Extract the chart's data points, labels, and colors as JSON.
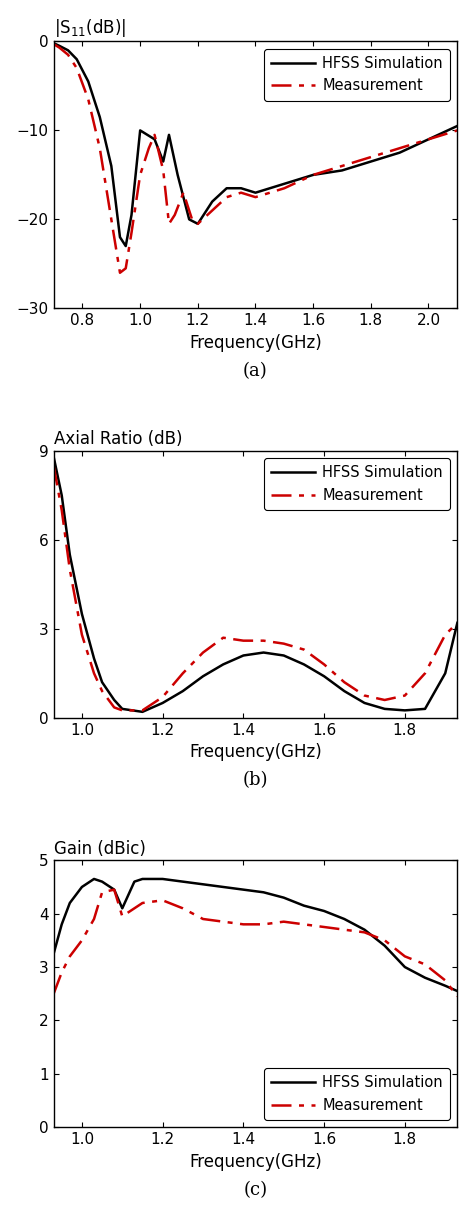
{
  "fig_width": 4.74,
  "fig_height": 12.17,
  "background_color": "#ffffff",
  "plot_a": {
    "ylabel": "|S$_{11}$(dB)|",
    "xlabel": "Frequency(GHz)",
    "label": "(a)",
    "xlim": [
      0.7,
      2.1
    ],
    "ylim": [
      -30,
      0
    ],
    "yticks": [
      0,
      -10,
      -20,
      -30
    ],
    "xticks": [
      0.8,
      1.0,
      1.2,
      1.4,
      1.6,
      1.8,
      2.0
    ],
    "sim_x": [
      0.7,
      0.72,
      0.75,
      0.78,
      0.82,
      0.86,
      0.9,
      0.93,
      0.95,
      0.97,
      1.0,
      1.05,
      1.08,
      1.1,
      1.13,
      1.17,
      1.2,
      1.25,
      1.3,
      1.35,
      1.4,
      1.5,
      1.6,
      1.7,
      1.8,
      1.9,
      2.0,
      2.1
    ],
    "sim_y": [
      -0.2,
      -0.5,
      -1.0,
      -2.0,
      -4.5,
      -8.5,
      -14.0,
      -22.0,
      -23.0,
      -19.5,
      -10.0,
      -11.0,
      -13.5,
      -10.5,
      -15.0,
      -20.0,
      -20.5,
      -18.0,
      -16.5,
      -16.5,
      -17.0,
      -16.0,
      -15.0,
      -14.5,
      -13.5,
      -12.5,
      -11.0,
      -9.5
    ],
    "meas_x": [
      0.7,
      0.72,
      0.75,
      0.78,
      0.82,
      0.86,
      0.9,
      0.93,
      0.95,
      0.97,
      1.0,
      1.03,
      1.05,
      1.08,
      1.1,
      1.12,
      1.15,
      1.18,
      1.2,
      1.25,
      1.3,
      1.35,
      1.4,
      1.5,
      1.6,
      1.7,
      1.8,
      1.9,
      2.0,
      2.1
    ],
    "meas_y": [
      -0.3,
      -0.7,
      -1.5,
      -3.0,
      -6.5,
      -12.0,
      -20.0,
      -26.0,
      -25.5,
      -21.5,
      -15.0,
      -12.0,
      -10.5,
      -14.5,
      -20.5,
      -19.5,
      -17.0,
      -20.0,
      -20.5,
      -19.0,
      -17.5,
      -17.0,
      -17.5,
      -16.5,
      -15.0,
      -14.0,
      -13.0,
      -12.0,
      -11.0,
      -10.0
    ]
  },
  "plot_b": {
    "ylabel": "Axial Ratio (dB)",
    "xlabel": "Frequency(GHz)",
    "label": "(b)",
    "xlim": [
      0.93,
      1.93
    ],
    "ylim": [
      0,
      9
    ],
    "yticks": [
      0,
      3,
      6,
      9
    ],
    "xticks": [
      1.0,
      1.2,
      1.4,
      1.6,
      1.8
    ],
    "sim_x": [
      0.93,
      0.95,
      0.97,
      1.0,
      1.03,
      1.05,
      1.08,
      1.1,
      1.15,
      1.2,
      1.25,
      1.3,
      1.35,
      1.4,
      1.45,
      1.5,
      1.55,
      1.6,
      1.65,
      1.7,
      1.75,
      1.8,
      1.85,
      1.9,
      1.93
    ],
    "sim_y": [
      8.8,
      7.5,
      5.5,
      3.5,
      2.0,
      1.2,
      0.6,
      0.3,
      0.2,
      0.5,
      0.9,
      1.4,
      1.8,
      2.1,
      2.2,
      2.1,
      1.8,
      1.4,
      0.9,
      0.5,
      0.3,
      0.25,
      0.3,
      1.5,
      3.2
    ],
    "meas_x": [
      0.93,
      0.95,
      0.97,
      1.0,
      1.03,
      1.05,
      1.08,
      1.1,
      1.15,
      1.2,
      1.25,
      1.3,
      1.35,
      1.4,
      1.45,
      1.5,
      1.55,
      1.6,
      1.65,
      1.7,
      1.75,
      1.8,
      1.85,
      1.9,
      1.93
    ],
    "meas_y": [
      8.5,
      7.0,
      5.0,
      2.8,
      1.5,
      0.9,
      0.35,
      0.25,
      0.25,
      0.7,
      1.5,
      2.2,
      2.7,
      2.6,
      2.6,
      2.5,
      2.3,
      1.8,
      1.2,
      0.75,
      0.6,
      0.75,
      1.5,
      2.8,
      3.2
    ]
  },
  "plot_c": {
    "ylabel": "Gain (dBic)",
    "xlabel": "Frequency(GHz)",
    "label": "(c)",
    "xlim": [
      0.93,
      1.93
    ],
    "ylim": [
      0,
      5
    ],
    "yticks": [
      0,
      1,
      2,
      3,
      4,
      5
    ],
    "xticks": [
      1.0,
      1.2,
      1.4,
      1.6,
      1.8
    ],
    "sim_x": [
      0.93,
      0.95,
      0.97,
      1.0,
      1.03,
      1.05,
      1.08,
      1.1,
      1.13,
      1.15,
      1.2,
      1.25,
      1.3,
      1.35,
      1.4,
      1.45,
      1.5,
      1.55,
      1.6,
      1.65,
      1.7,
      1.75,
      1.8,
      1.85,
      1.9,
      1.93
    ],
    "sim_y": [
      3.25,
      3.8,
      4.2,
      4.5,
      4.65,
      4.6,
      4.45,
      4.1,
      4.6,
      4.65,
      4.65,
      4.6,
      4.55,
      4.5,
      4.45,
      4.4,
      4.3,
      4.15,
      4.05,
      3.9,
      3.7,
      3.4,
      3.0,
      2.8,
      2.65,
      2.55
    ],
    "meas_x": [
      0.93,
      0.95,
      0.97,
      1.0,
      1.03,
      1.05,
      1.08,
      1.1,
      1.15,
      1.2,
      1.25,
      1.3,
      1.35,
      1.4,
      1.45,
      1.5,
      1.55,
      1.6,
      1.65,
      1.7,
      1.75,
      1.8,
      1.85,
      1.9,
      1.93
    ],
    "meas_y": [
      2.5,
      2.9,
      3.2,
      3.5,
      3.9,
      4.4,
      4.45,
      3.95,
      4.2,
      4.25,
      4.1,
      3.9,
      3.85,
      3.8,
      3.8,
      3.85,
      3.8,
      3.75,
      3.7,
      3.65,
      3.5,
      3.2,
      3.05,
      2.75,
      2.45
    ]
  },
  "sim_color": "#000000",
  "meas_color": "#cc0000",
  "sim_lw": 1.8,
  "meas_lw": 1.8,
  "legend_loc_ab": "upper right",
  "legend_loc_c": "lower right",
  "tick_fontsize": 11,
  "label_fontsize": 12,
  "legend_fontsize": 10.5
}
